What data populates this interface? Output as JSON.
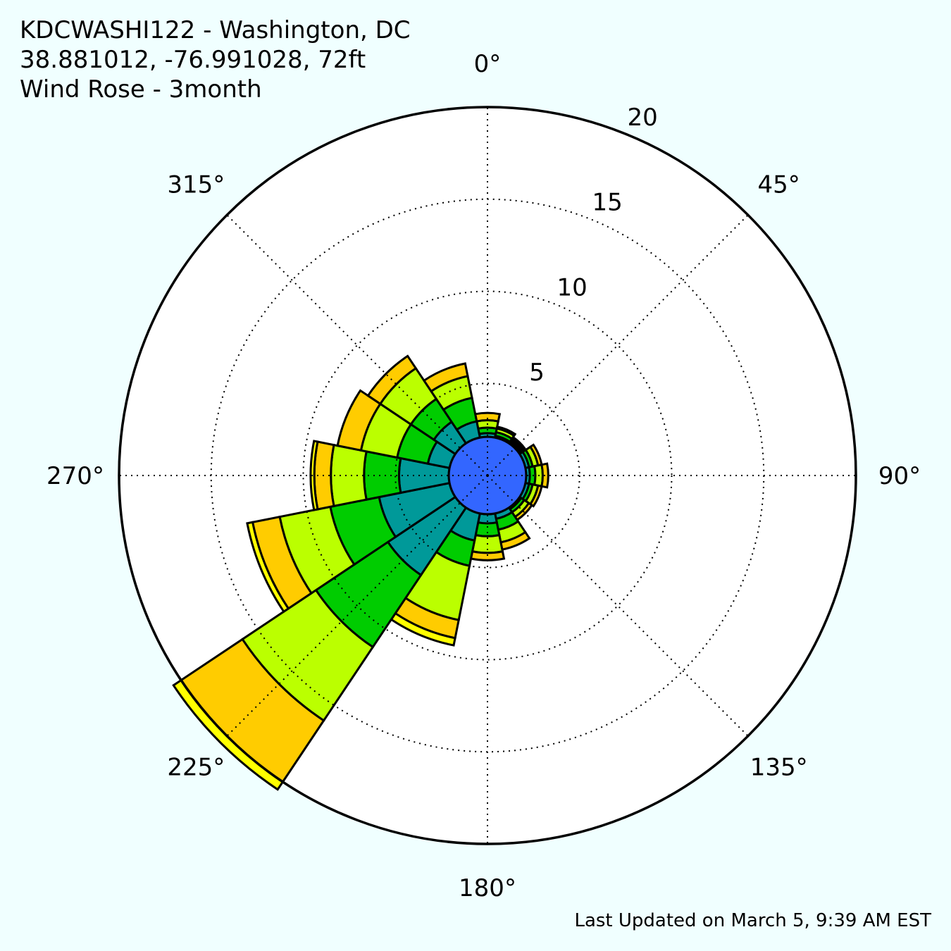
{
  "title_lines": [
    "KDCWASHI122 - Washington, DC",
    "38.881012, -76.991028, 72ft",
    "Wind Rose - 3month"
  ],
  "footer": "Last Updated on March 5, 9:39 AM EST",
  "chart_data": {
    "type": "wind_rose",
    "title": "Wind Rose - 3month",
    "r_ticks": [
      5,
      10,
      15,
      20
    ],
    "r_tick_labels": [
      "5",
      "10",
      "15",
      "20"
    ],
    "r_max": 20,
    "angle_ticks": [
      0,
      45,
      90,
      135,
      180,
      225,
      270,
      315
    ],
    "angle_tick_labels": [
      "0°",
      "45°",
      "90°",
      "135°",
      "180°",
      "225°",
      "270°",
      "315°"
    ],
    "grid": true,
    "calm_radius": 2.1,
    "calm_color": "#3366ff",
    "direction_sector_width": 22.5,
    "speed_bin_colors": [
      "#3366ff",
      "#009999",
      "#00cc00",
      "#bbff00",
      "#ffcc00",
      "#ffff00"
    ],
    "sectors": [
      {
        "direction": 0,
        "bounds": [
          2.1,
          2.3,
          2.6,
          3.0,
          3.4
        ]
      },
      {
        "direction": 22.5,
        "bounds": [
          2.1,
          2.2,
          2.4,
          2.6,
          2.7
        ]
      },
      {
        "direction": 45,
        "bounds": [
          2.1,
          2.2,
          2.3,
          2.4,
          2.5
        ]
      },
      {
        "direction": 67.5,
        "bounds": [
          2.1,
          2.3,
          2.5,
          2.8,
          3.0
        ]
      },
      {
        "direction": 90,
        "bounds": [
          2.1,
          2.3,
          2.6,
          3.0,
          3.3
        ]
      },
      {
        "direction": 112.5,
        "bounds": [
          2.1,
          2.3,
          2.5,
          2.8,
          3.0
        ]
      },
      {
        "direction": 135,
        "bounds": [
          2.1,
          2.2,
          2.4,
          2.7,
          2.9
        ]
      },
      {
        "direction": 157.5,
        "bounds": [
          2.1,
          2.4,
          3.0,
          3.7,
          4.1
        ]
      },
      {
        "direction": 180,
        "bounds": [
          2.1,
          2.6,
          3.3,
          4.2,
          4.6
        ]
      },
      {
        "direction": 202.5,
        "bounds": [
          2.1,
          3.6,
          5.0,
          8.0,
          9.0,
          9.4
        ]
      },
      {
        "direction": 225,
        "bounds": [
          2.1,
          6.5,
          11.2,
          16.0,
          20.0,
          20.5
        ]
      },
      {
        "direction": 247.5,
        "bounds": [
          2.1,
          6.0,
          8.7,
          11.5,
          13.0,
          13.3
        ]
      },
      {
        "direction": 270,
        "bounds": [
          2.1,
          4.8,
          6.7,
          8.5,
          9.4,
          9.6
        ]
      },
      {
        "direction": 292.5,
        "bounds": [
          2.1,
          3.3,
          5.0,
          7.0,
          8.3
        ]
      },
      {
        "direction": 315,
        "bounds": [
          2.1,
          3.5,
          5.0,
          7.0,
          7.8
        ]
      },
      {
        "direction": 337.5,
        "bounds": [
          2.1,
          3.0,
          4.3,
          5.5,
          6.2
        ]
      }
    ]
  }
}
